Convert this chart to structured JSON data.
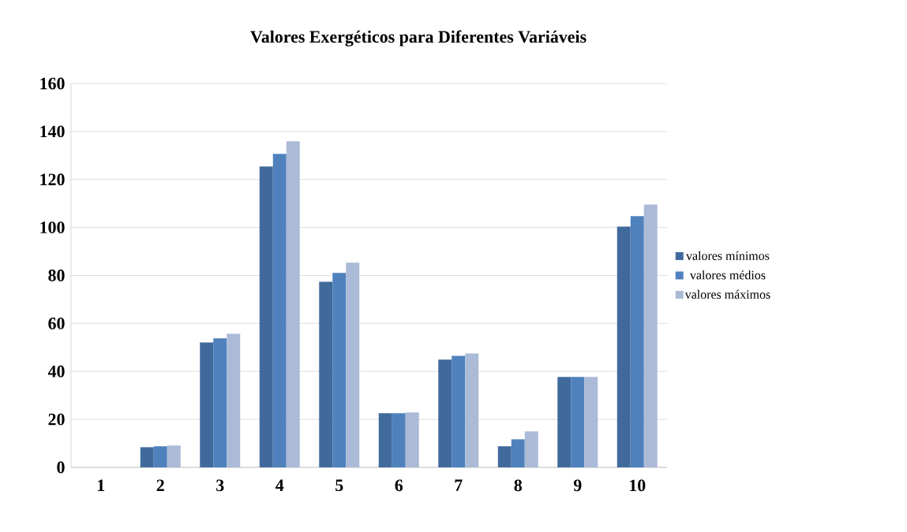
{
  "chart_data": {
    "type": "bar",
    "title": "Valores Exergéticos para Diferentes Variáveis",
    "categories": [
      "1",
      "2",
      "3",
      "4",
      "5",
      "6",
      "7",
      "8",
      "9",
      "10"
    ],
    "series": [
      {
        "name": "valores mínimos",
        "color": "#416a9c",
        "values": [
          0,
          8.4,
          52.1,
          125.4,
          77.4,
          22.6,
          44.9,
          8.8,
          37.7,
          100.4
        ]
      },
      {
        "name": "valores médios",
        "color": "#4f81bd",
        "values": [
          0,
          8.8,
          53.8,
          130.7,
          81.1,
          22.6,
          46.5,
          11.7,
          37.7,
          104.7
        ]
      },
      {
        "name": "valores máximos",
        "color": "#abbad7",
        "values": [
          0,
          9.1,
          55.7,
          135.9,
          85.3,
          22.9,
          47.5,
          15.0,
          37.7,
          109.6
        ]
      }
    ],
    "ylim": [
      0,
      160
    ],
    "yticks": [
      0,
      20,
      40,
      60,
      80,
      100,
      120,
      140,
      160
    ],
    "grid": "y",
    "legend": "right"
  }
}
